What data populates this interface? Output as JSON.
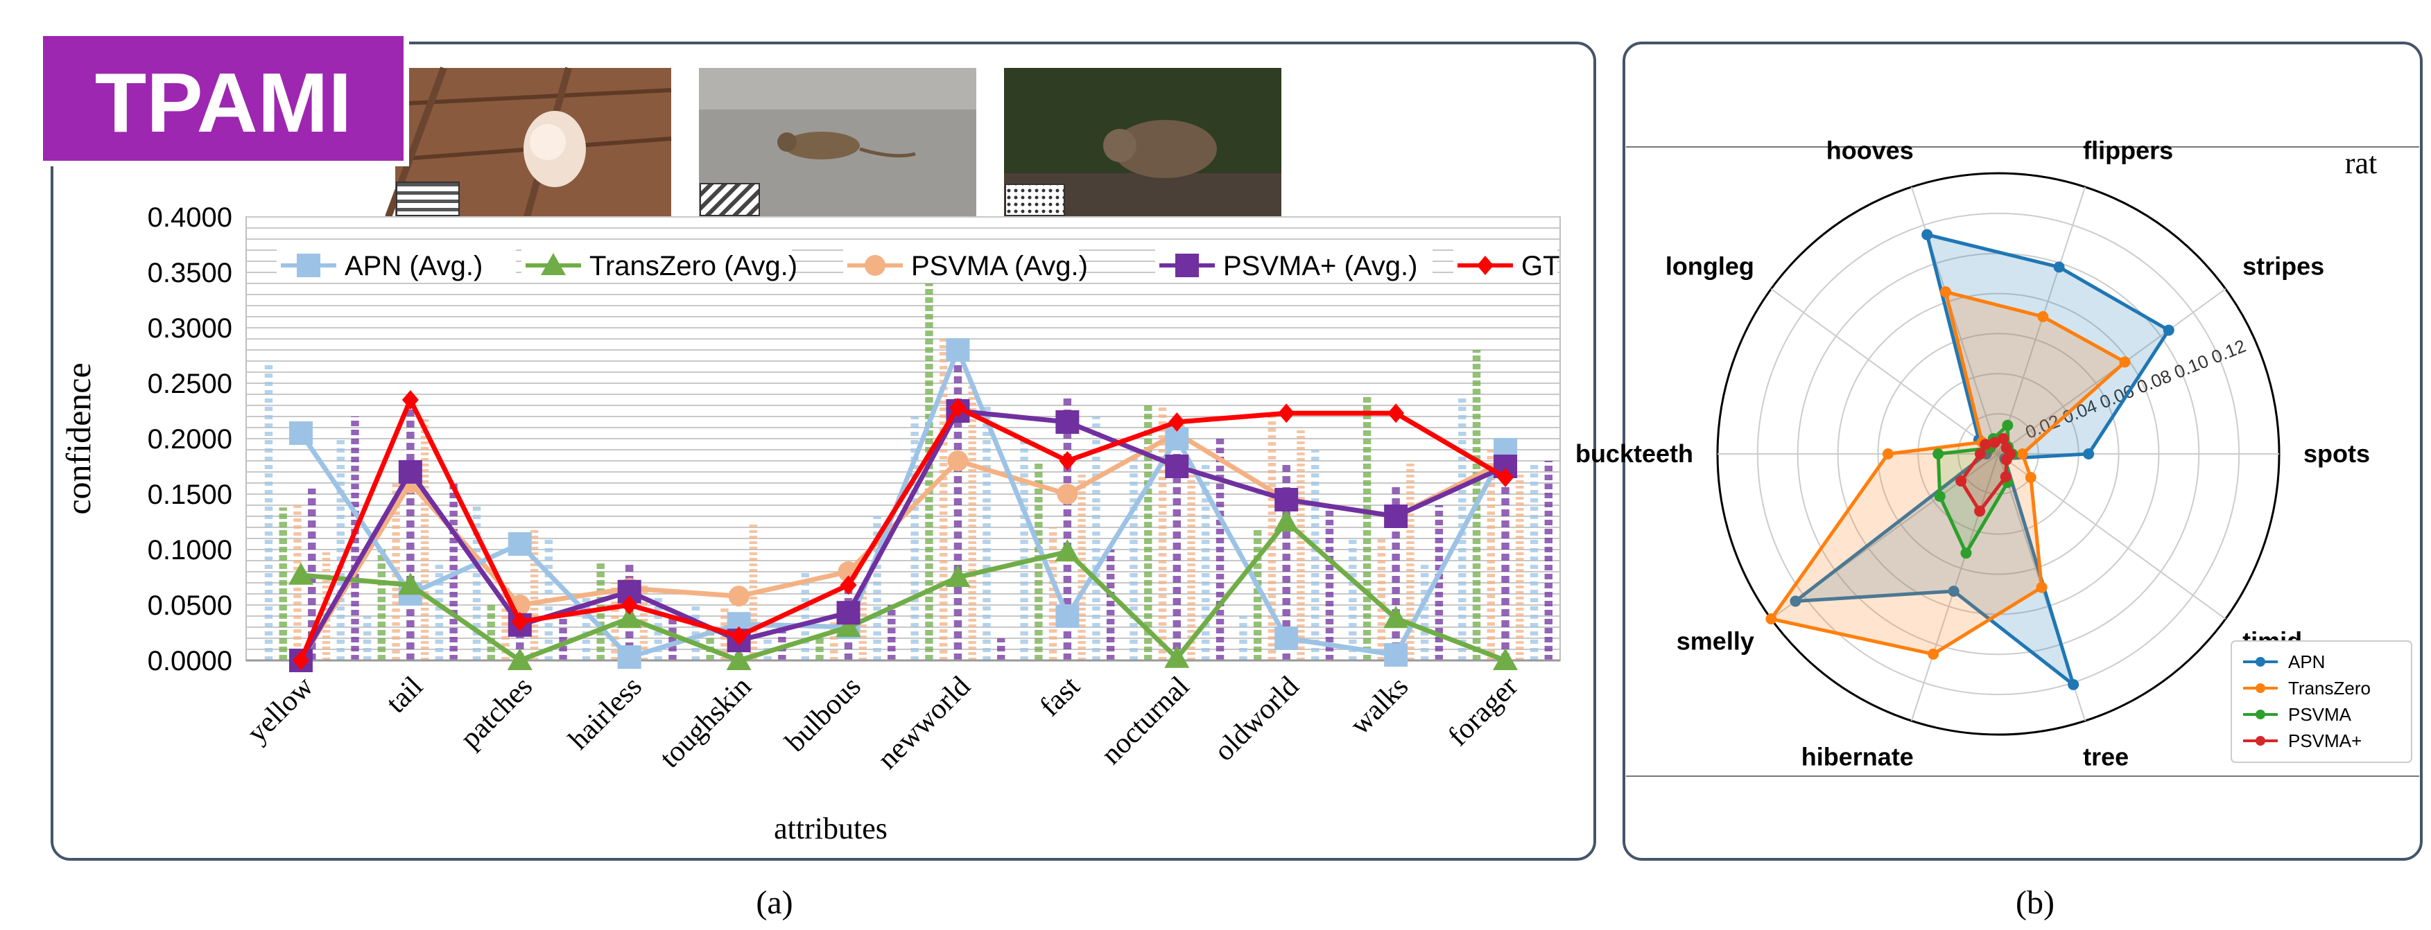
{
  "badge": "TPAMI",
  "colors": {
    "apn": "#9cc3e5",
    "transzero": "#70ad47",
    "psvma": "#f4b183",
    "psvma_plus": "#7030a0",
    "gt": "#ff0000",
    "badge_bg": "#9d27b0",
    "frame": "#44546a",
    "radar_apn": "#1f77b4",
    "radar_transzero": "#ff7f0e",
    "radar_psvma": "#2ca02c",
    "radar_psvma_plus": "#d62728"
  },
  "panel_a": {
    "caption": "(a)",
    "images": [
      {
        "icon": "photo-rat-on-deck",
        "pattern": "horizontal-stripes"
      },
      {
        "icon": "photo-rat-on-ground",
        "pattern": "diagonal-stripes"
      },
      {
        "icon": "photo-rat-on-log",
        "pattern": "dots"
      }
    ]
  },
  "panel_b": {
    "caption": "(b)"
  },
  "chart_data": [
    {
      "type": "line",
      "ylabel": "confidence",
      "xlabel": "attributes",
      "ylim": [
        0,
        0.4
      ],
      "yticks": [
        "0.0000",
        "0.0500",
        "0.1000",
        "0.1500",
        "0.2000",
        "0.2500",
        "0.3000",
        "0.3500",
        "0.4000"
      ],
      "grid": true,
      "legend_position": "top",
      "categories": [
        "yellow",
        "tail",
        "patches",
        "hairless",
        "toughskin",
        "bulbous",
        "newworld",
        "fast",
        "nocturnal",
        "oldworld",
        "walks",
        "forager"
      ],
      "series": [
        {
          "name": "APN (Avg.)",
          "marker": "square",
          "values": [
            0.205,
            0.06,
            0.105,
            0.003,
            0.033,
            0.03,
            0.28,
            0.04,
            0.2,
            0.02,
            0.005,
            0.19
          ]
        },
        {
          "name": "TransZero (Avg.)",
          "marker": "triangle",
          "values": [
            0.077,
            0.068,
            0.0,
            0.038,
            0.0,
            0.03,
            0.075,
            0.098,
            0.002,
            0.125,
            0.038,
            0.0
          ]
        },
        {
          "name": "PSVMA (Avg.)",
          "marker": "circle",
          "values": [
            0.0,
            0.16,
            0.05,
            0.065,
            0.058,
            0.08,
            0.18,
            0.15,
            0.205,
            0.145,
            0.13,
            0.18
          ]
        },
        {
          "name": "PSVMA+ (Avg.)",
          "marker": "square",
          "values": [
            0.0,
            0.17,
            0.032,
            0.062,
            0.018,
            0.043,
            0.225,
            0.215,
            0.175,
            0.145,
            0.13,
            0.175
          ]
        },
        {
          "name": "GT",
          "marker": "diamond",
          "values": [
            0.0,
            0.235,
            0.035,
            0.05,
            0.022,
            0.068,
            0.228,
            0.18,
            0.215,
            0.223,
            0.223,
            0.165
          ]
        }
      ],
      "background_bar_values": [
        [
          0.27,
          0.138,
          0.14,
          0.155,
          0.1,
          0.2,
          0.22
        ],
        [
          0.04,
          0.1,
          0.16,
          0.23,
          0.22,
          0.09,
          0.16
        ],
        [
          0.14,
          0.05,
          0.07,
          0.04,
          0.12,
          0.11,
          0.04
        ],
        [
          0.06,
          0.09,
          0.07,
          0.09,
          0.07,
          0.06,
          0.04
        ],
        [
          0.05,
          0.03,
          0.05,
          0.02,
          0.125,
          0.02,
          0.03
        ],
        [
          0.08,
          0.02,
          0.04,
          0.08,
          0.07,
          0.13,
          0.05
        ],
        [
          0.22,
          0.34,
          0.29,
          0.28,
          0.25,
          0.23,
          0.02
        ],
        [
          0.2,
          0.18,
          0.12,
          0.24,
          0.17,
          0.22,
          0.1
        ],
        [
          0.19,
          0.23,
          0.23,
          0.2,
          0.17,
          0.18,
          0.2
        ],
        [
          0.04,
          0.12,
          0.22,
          0.18,
          0.21,
          0.19,
          0.14
        ],
        [
          0.11,
          0.24,
          0.11,
          0.16,
          0.18,
          0.09,
          0.14
        ],
        [
          0.24,
          0.28,
          0.19,
          0.18,
          0.17,
          0.18,
          0.18
        ]
      ]
    },
    {
      "type": "radar",
      "title": "rat",
      "axes": [
        "spots",
        "stripes",
        "flippers",
        "hooves",
        "longleg",
        "buckteeth",
        "smelly",
        "hibernate",
        "tree",
        "timid"
      ],
      "rlabels": [
        "0.02",
        "0.04",
        "0.06",
        "0.08",
        "0.10",
        "0.12"
      ],
      "rlim": [
        0,
        0.14
      ],
      "legend_position": "lower-right",
      "series": [
        {
          "name": "APN",
          "values": [
            0.045,
            0.105,
            0.098,
            0.115,
            0.012,
            0.006,
            0.125,
            0.072,
            0.121,
            0.004
          ]
        },
        {
          "name": "TransZero",
          "values": [
            0.012,
            0.078,
            0.072,
            0.085,
            0.01,
            0.055,
            0.14,
            0.105,
            0.07,
            0.02
          ]
        },
        {
          "name": "PSVMA",
          "values": [
            0.007,
            0.006,
            0.015,
            0.008,
            0.005,
            0.03,
            0.036,
            0.052,
            0.015,
            0.005
          ]
        },
        {
          "name": "PSVMA+",
          "values": [
            0.006,
            0.005,
            0.008,
            0.006,
            0.008,
            0.009,
            0.023,
            0.03,
            0.012,
            0.005
          ]
        }
      ]
    }
  ]
}
